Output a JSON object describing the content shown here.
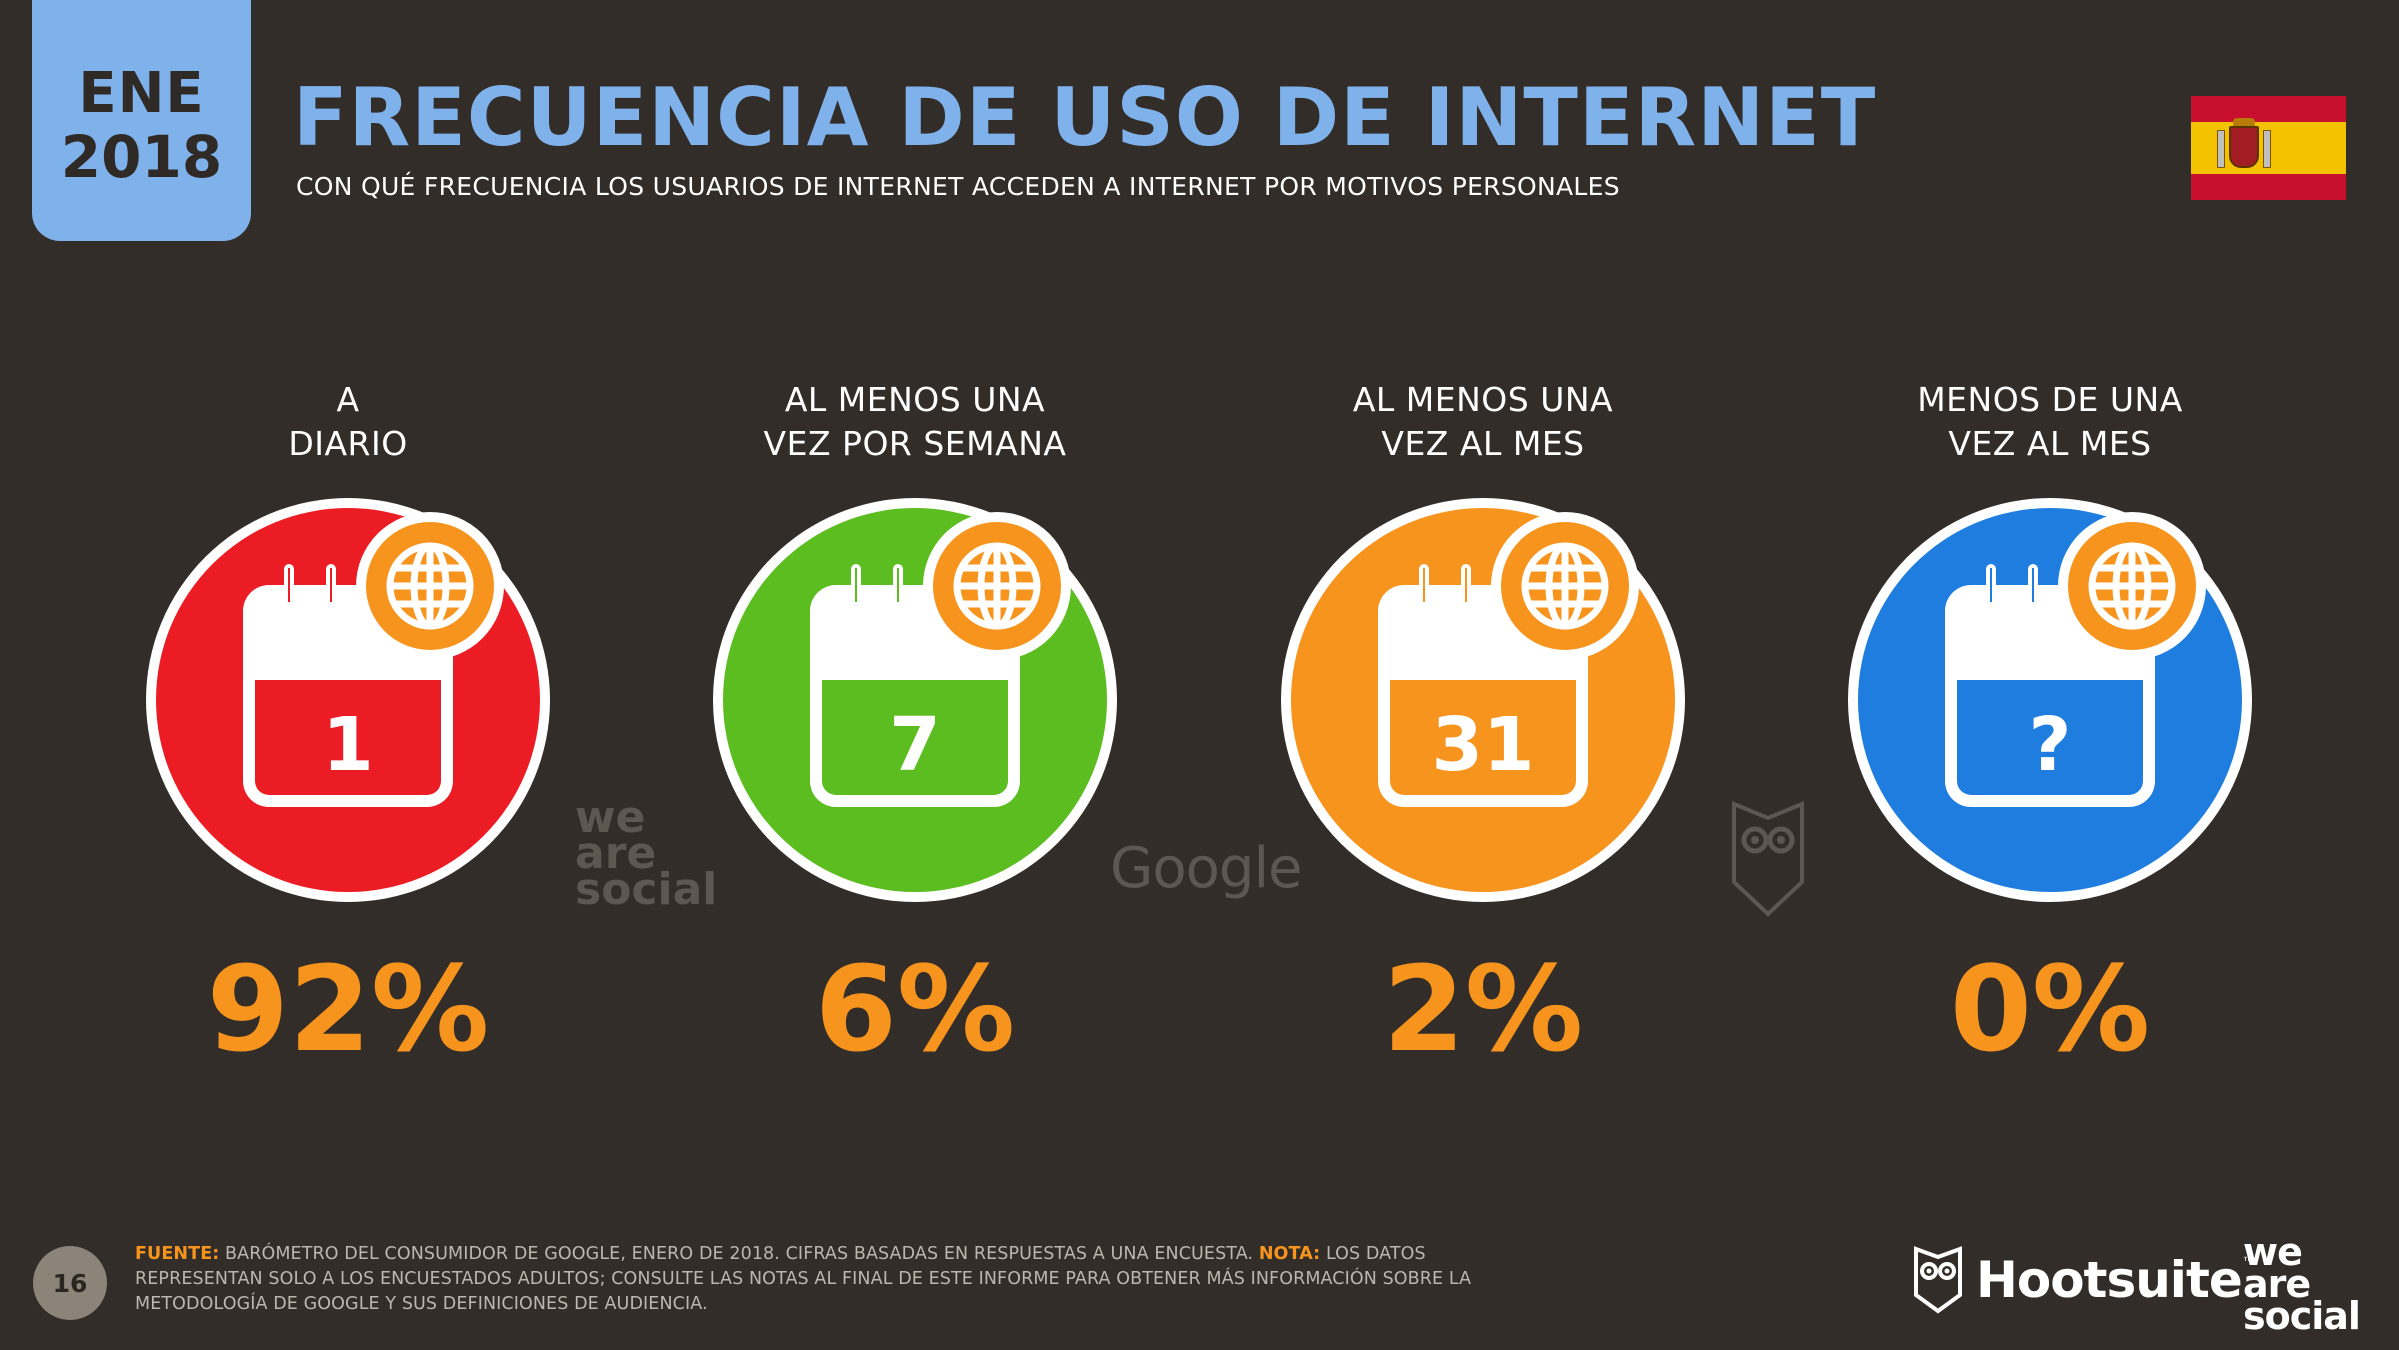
{
  "header": {
    "badge_month": "ENE",
    "badge_year": "2018",
    "title": "FRECUENCIA DE USO DE INTERNET",
    "subtitle": "CON QUÉ FRECUENCIA LOS USUARIOS DE INTERNET ACCEDEN A INTERNET POR MOTIVOS PERSONALES",
    "flag_icon": "spain-flag-icon"
  },
  "items": [
    {
      "label_line1": "A",
      "label_line2": "DIARIO",
      "calendar_text": "1",
      "percent": "92%",
      "value": 92,
      "color": "#ec1c24"
    },
    {
      "label_line1": "AL MENOS UNA",
      "label_line2": "VEZ POR SEMANA",
      "calendar_text": "7",
      "percent": "6%",
      "value": 6,
      "color": "#5cbd21"
    },
    {
      "label_line1": "AL MENOS UNA",
      "label_line2": "VEZ AL MES",
      "calendar_text": "31",
      "percent": "2%",
      "value": 2,
      "color": "#f7941d"
    },
    {
      "label_line1": "MENOS DE UNA",
      "label_line2": "VEZ AL MES",
      "calendar_text": "?",
      "percent": "0%",
      "value": 0,
      "color": "#1f7de0"
    }
  ],
  "watermarks": {
    "we": "we",
    "are": "are",
    "social": "social",
    "google": "Google"
  },
  "footer": {
    "page_number": "16",
    "source_key": "FUENTE:",
    "source_text": " BARÓMETRO DEL CONSUMIDOR DE GOOGLE, ENERO DE 2018. CIFRAS BASADAS EN RESPUESTAS A UNA ENCUESTA. ",
    "note_key": "NOTA:",
    "note_text": " LOS DATOS REPRESENTAN SOLO A LOS ENCUESTADOS ADULTOS; CONSULTE LAS NOTAS AL FINAL DE ESTE INFORME PARA OBTENER MÁS INFORMACIÓN SOBRE LA METODOLOGÍA DE GOOGLE Y SUS DEFINICIONES DE AUDIENCIA.",
    "hootsuite": "Hootsuite",
    "hootsuite_tm": "™",
    "was_we": "we",
    "was_are": "are",
    "was_social": "social"
  },
  "colors": {
    "background": "#322d29",
    "accent_blue": "#7fb1ea",
    "accent_orange": "#f7941d",
    "globe_badge": "#f7941d"
  }
}
